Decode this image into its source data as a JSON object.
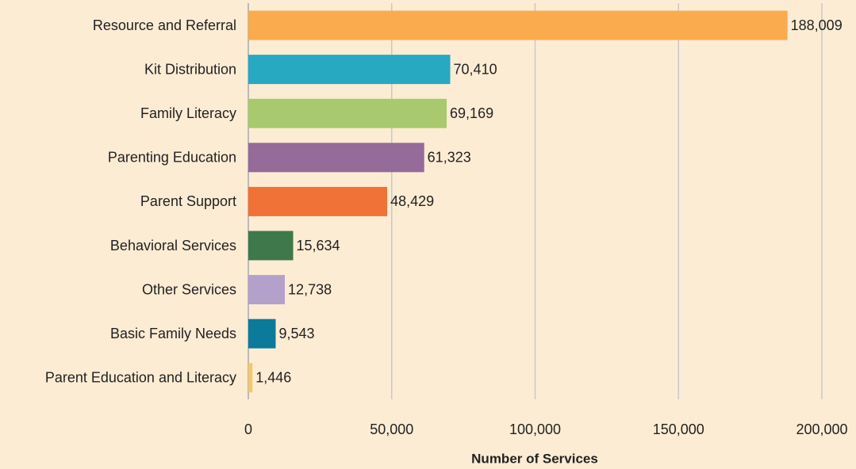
{
  "chart_data": {
    "type": "bar",
    "orientation": "horizontal",
    "x_label": "Number of Services",
    "categories": [
      "Resource and Referral",
      "Kit Distribution",
      "Family Literacy",
      "Parenting Education",
      "Parent Support",
      "Behavioral Services",
      "Other Services",
      "Basic Family Needs",
      "Parent Education and Literacy"
    ],
    "values": [
      188009,
      70410,
      69169,
      61323,
      48429,
      15634,
      12738,
      9543,
      1446
    ],
    "value_labels": [
      "188,009",
      "70,410",
      "69,169",
      "61,323",
      "48,429",
      "15,634",
      "12,738",
      "9,543",
      "1,446"
    ],
    "colors": [
      "#f9ab4e",
      "#27a9c1",
      "#a8c96e",
      "#946b99",
      "#f07236",
      "#3f784a",
      "#b3a0cb",
      "#0b7a9b",
      "#f1c86a"
    ],
    "xlim": [
      0,
      200000
    ],
    "xticks": [
      0,
      {
        "value": 50000,
        "label": "50,000"
      },
      {
        "value": 100000,
        "label": "100,000"
      },
      {
        "value": 150000,
        "label": "150,000"
      },
      {
        "value": 200000,
        "label": "200,000"
      }
    ],
    "grid": true
  }
}
